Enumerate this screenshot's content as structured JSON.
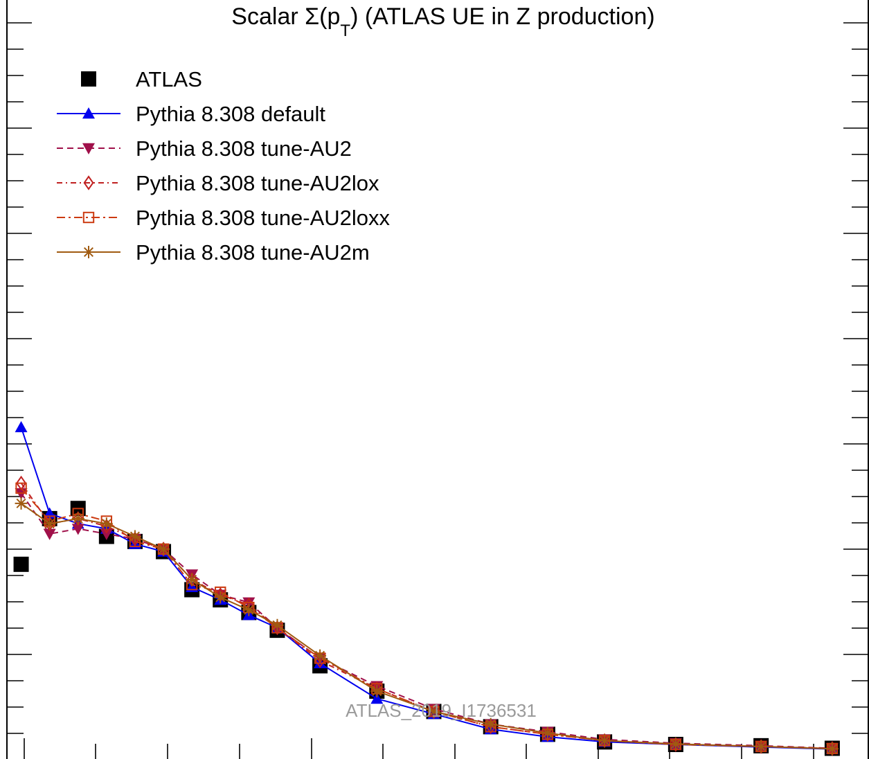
{
  "chart_data": {
    "type": "line",
    "title": {
      "prefix": "Scalar ",
      "sigma": "Σ",
      "open": "(p",
      "sub": "T",
      "close": ") (ATLAS UE in Z production)"
    },
    "watermark": "ATLAS_2019_I1736531",
    "xlabel": "",
    "ylabel": "",
    "x": [
      0.5,
      1.5,
      2.5,
      3.5,
      4.5,
      5.5,
      6.5,
      7.5,
      8.5,
      9.5,
      11.0,
      13.0,
      15.0,
      17.0,
      19.0,
      21.0,
      23.5,
      26.5,
      29.0
    ],
    "xlim": [
      0,
      30
    ],
    "ylim": [
      0,
      28
    ],
    "series": [
      {
        "name": "ATLAS",
        "style": "points",
        "marker": "filled-square",
        "color": "#000000",
        "values": [
          7.4,
          9.2,
          9.6,
          8.5,
          8.3,
          7.9,
          6.4,
          6.0,
          5.5,
          4.8,
          3.4,
          2.4,
          1.6,
          1.0,
          0.7,
          0.4,
          0.3,
          0.25,
          0.15
        ]
      },
      {
        "name": "Pythia 8.308 default",
        "style": "solid",
        "marker": "triangle-up",
        "color": "#0000ee",
        "values": [
          12.8,
          9.4,
          9.0,
          8.8,
          8.2,
          7.9,
          6.5,
          6.0,
          5.4,
          4.9,
          3.5,
          2.1,
          1.5,
          0.9,
          0.6,
          0.4,
          0.3,
          0.2,
          0.12
        ]
      },
      {
        "name": "Pythia 8.308 tune-AU2",
        "style": "dashed",
        "marker": "triangle-down",
        "color": "#a0104a",
        "values": [
          10.2,
          8.6,
          8.8,
          8.6,
          8.4,
          8.0,
          7.0,
          6.2,
          5.9,
          4.9,
          3.7,
          2.6,
          1.7,
          1.1,
          0.8,
          0.5,
          0.35,
          0.25,
          0.15
        ]
      },
      {
        "name": "Pythia 8.308 tune-AU2lox",
        "style": "dashdot",
        "marker": "open-diamond",
        "color": "#c02020",
        "values": [
          10.6,
          9.0,
          9.2,
          8.9,
          8.4,
          8.0,
          6.8,
          6.2,
          5.8,
          4.9,
          3.6,
          2.5,
          1.6,
          1.0,
          0.7,
          0.45,
          0.3,
          0.22,
          0.14
        ]
      },
      {
        "name": "Pythia 8.308 tune-AU2loxx",
        "style": "dashdot-long",
        "marker": "open-square",
        "color": "#cc3a10",
        "values": [
          10.4,
          9.1,
          9.4,
          9.1,
          8.3,
          8.0,
          6.6,
          6.3,
          5.7,
          4.9,
          3.7,
          2.5,
          1.6,
          1.0,
          0.7,
          0.45,
          0.3,
          0.22,
          0.14
        ]
      },
      {
        "name": "Pythia 8.308 tune-AU2m",
        "style": "solid",
        "marker": "star",
        "color": "#a05a10",
        "values": [
          9.8,
          9.0,
          9.2,
          9.0,
          8.5,
          8.0,
          6.8,
          6.1,
          5.6,
          5.0,
          3.8,
          2.4,
          1.6,
          1.1,
          0.75,
          0.45,
          0.32,
          0.22,
          0.13
        ]
      }
    ],
    "grid": false,
    "legend_position": "top-left"
  }
}
